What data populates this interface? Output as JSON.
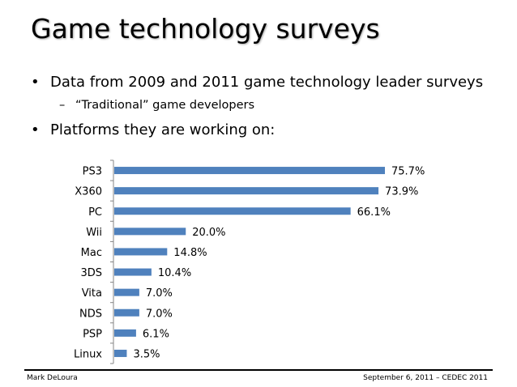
{
  "slide": {
    "title": "Game technology surveys",
    "bullets": [
      "Data from 2009 and 2011 game technology leader surveys",
      "Platforms they are working on:"
    ],
    "sub_bullets": [
      "“Traditional” game developers"
    ],
    "bullet_symbol": "•",
    "sub_bullet_symbol": "–"
  },
  "chart_data": {
    "type": "bar",
    "orientation": "horizontal",
    "categories": [
      "PS3",
      "X360",
      "PC",
      "Wii",
      "Mac",
      "3DS",
      "Vita",
      "NDS",
      "PSP",
      "Linux"
    ],
    "values": [
      75.7,
      73.9,
      66.1,
      20.0,
      14.8,
      10.4,
      7.0,
      7.0,
      6.1,
      3.5
    ],
    "value_labels": [
      "75.7%",
      "73.9%",
      "66.1%",
      "20.0%",
      "14.8%",
      "10.4%",
      "7.0%",
      "7.0%",
      "6.1%",
      "3.5%"
    ],
    "xlim": [
      0,
      75.7
    ],
    "grid": false,
    "bar_color": "#4F81BD"
  },
  "footer": {
    "left": "Mark DeLoura",
    "right": "September 6, 2011 – CEDEC 2011"
  }
}
